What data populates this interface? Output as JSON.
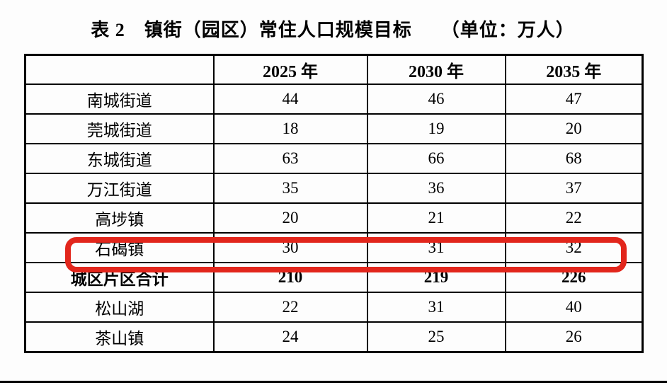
{
  "title": "表 2　镇街（园区）常住人口规模目标　　（单位：万人）",
  "colors": {
    "highlight_red": "#e2261c",
    "border_black": "#000000",
    "text_black": "#000000",
    "page_background": "#fdfdfd"
  },
  "table": {
    "columns": [
      "",
      "2025 年",
      "2030 年",
      "2035 年"
    ],
    "rows": [
      {
        "label": "南城街道",
        "values": [
          "44",
          "46",
          "47"
        ],
        "bold": false,
        "highlighted": false
      },
      {
        "label": "莞城街道",
        "values": [
          "18",
          "19",
          "20"
        ],
        "bold": false,
        "highlighted": false
      },
      {
        "label": "东城街道",
        "values": [
          "63",
          "66",
          "68"
        ],
        "bold": false,
        "highlighted": false
      },
      {
        "label": "万江街道",
        "values": [
          "35",
          "36",
          "37"
        ],
        "bold": false,
        "highlighted": false
      },
      {
        "label": "高埗镇",
        "values": [
          "20",
          "21",
          "22"
        ],
        "bold": false,
        "highlighted": false
      },
      {
        "label": "石碣镇",
        "values": [
          "30",
          "31",
          "32"
        ],
        "bold": false,
        "highlighted": true
      },
      {
        "label": "城区片区合计",
        "values": [
          "210",
          "219",
          "226"
        ],
        "bold": true,
        "highlighted": false
      },
      {
        "label": "松山湖",
        "values": [
          "22",
          "31",
          "40"
        ],
        "bold": false,
        "highlighted": false
      },
      {
        "label": "茶山镇",
        "values": [
          "24",
          "25",
          "26"
        ],
        "bold": false,
        "highlighted": false
      }
    ]
  }
}
